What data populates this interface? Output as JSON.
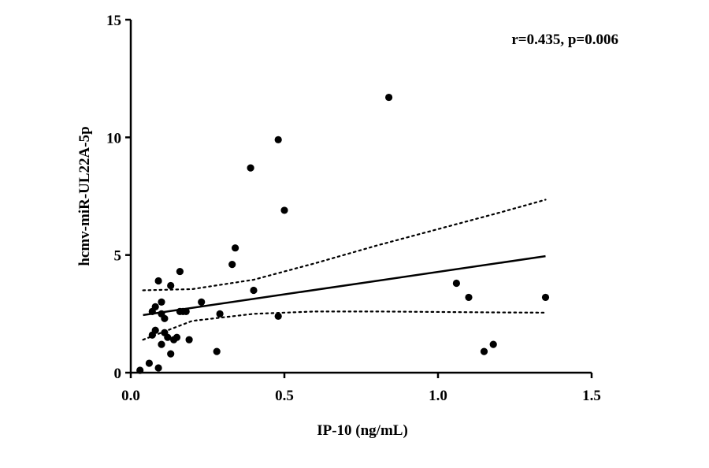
{
  "chart_data": {
    "type": "scatter",
    "title": "",
    "xlabel": "IP-10 (ng/mL)",
    "ylabel": "hcmv-miR-UL22A-5p",
    "xlim": [
      0,
      1.5
    ],
    "ylim": [
      0,
      15
    ],
    "xticks": [
      0,
      0.5,
      1,
      1.5
    ],
    "xtick_labels": [
      "0.0",
      "0.5",
      "1.0",
      "1.5"
    ],
    "yticks": [
      0,
      5,
      10,
      15
    ],
    "ytick_labels": [
      "0",
      "5",
      "10",
      "15"
    ],
    "annotation": "r=0.435, p=0.006",
    "grid": false,
    "legend": "none",
    "series": [
      {
        "name": "samples",
        "points": [
          [
            0.03,
            0.1
          ],
          [
            0.06,
            0.4
          ],
          [
            0.09,
            0.2
          ],
          [
            0.07,
            1.6
          ],
          [
            0.08,
            1.8
          ],
          [
            0.07,
            2.6
          ],
          [
            0.08,
            2.8
          ],
          [
            0.09,
            3.9
          ],
          [
            0.1,
            3.0
          ],
          [
            0.1,
            2.5
          ],
          [
            0.11,
            2.3
          ],
          [
            0.1,
            1.2
          ],
          [
            0.11,
            1.7
          ],
          [
            0.12,
            1.5
          ],
          [
            0.13,
            0.8
          ],
          [
            0.13,
            3.7
          ],
          [
            0.14,
            1.4
          ],
          [
            0.15,
            1.5
          ],
          [
            0.16,
            4.3
          ],
          [
            0.16,
            2.6
          ],
          [
            0.17,
            2.6
          ],
          [
            0.18,
            2.6
          ],
          [
            0.19,
            1.4
          ],
          [
            0.23,
            3.0
          ],
          [
            0.28,
            0.9
          ],
          [
            0.29,
            2.5
          ],
          [
            0.33,
            4.6
          ],
          [
            0.34,
            5.3
          ],
          [
            0.39,
            8.7
          ],
          [
            0.4,
            3.5
          ],
          [
            0.48,
            9.9
          ],
          [
            0.48,
            2.4
          ],
          [
            0.5,
            6.9
          ],
          [
            0.84,
            11.7
          ],
          [
            1.06,
            3.8
          ],
          [
            1.1,
            3.2
          ],
          [
            1.15,
            0.9
          ],
          [
            1.18,
            1.2
          ],
          [
            1.35,
            3.2
          ]
        ]
      }
    ],
    "regression_line": {
      "x": [
        0.04,
        1.35
      ],
      "y": [
        2.45,
        4.95
      ]
    },
    "confidence_band": {
      "upper": {
        "x": [
          0.04,
          0.2,
          0.4,
          0.6,
          0.8,
          1.0,
          1.2,
          1.35
        ],
        "y": [
          3.5,
          3.55,
          3.95,
          4.65,
          5.4,
          6.1,
          6.8,
          7.35
        ]
      },
      "lower": {
        "x": [
          0.04,
          0.2,
          0.4,
          0.6,
          0.8,
          1.0,
          1.2,
          1.35
        ],
        "y": [
          1.4,
          2.2,
          2.5,
          2.6,
          2.6,
          2.58,
          2.56,
          2.55
        ]
      }
    }
  }
}
